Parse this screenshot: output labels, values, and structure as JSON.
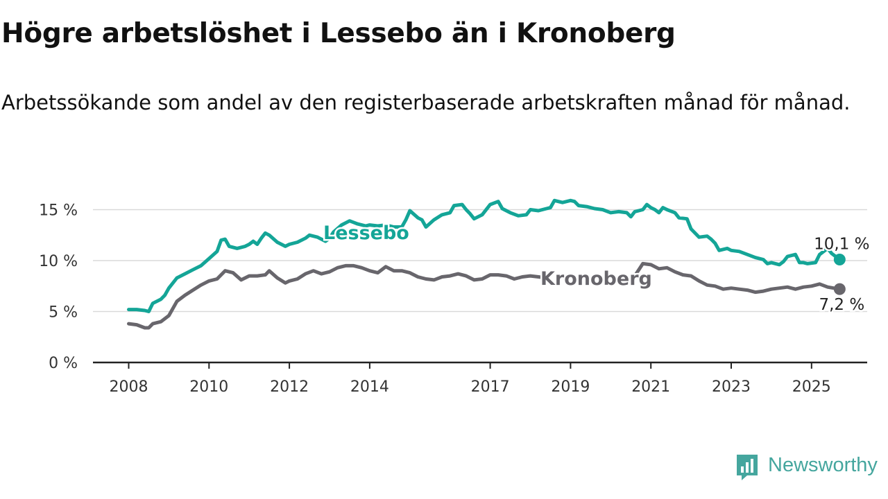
{
  "header": {
    "title": "Högre arbetslöshet i Lessebo än i Kronoberg",
    "subtitle": "Arbetssökande som andel av den registerbaserade arbetskraften månad för månad."
  },
  "brand": {
    "name": "Newsworthy",
    "icon": "newsworthy-logo-icon",
    "color": "#45a69e"
  },
  "chart_data": {
    "type": "line",
    "title": "Högre arbetslöshet i Lessebo än i Kronoberg",
    "subtitle": "Arbetssökande som andel av den registerbaserade arbetskraften månad för månad.",
    "xlim": [
      2008.0,
      2025.9
    ],
    "ylim": [
      0,
      16.5
    ],
    "x_ticks": [
      {
        "value": 2008,
        "label": "2008"
      },
      {
        "value": 2010,
        "label": "2010"
      },
      {
        "value": 2012,
        "label": "2012"
      },
      {
        "value": 2014,
        "label": "2014"
      },
      {
        "value": 2017,
        "label": "2017"
      },
      {
        "value": 2019,
        "label": "2019"
      },
      {
        "value": 2021,
        "label": "2021"
      },
      {
        "value": 2023,
        "label": "2023"
      },
      {
        "value": 2025,
        "label": "2025"
      }
    ],
    "y_ticks": [
      {
        "value": 0,
        "label": "0 %"
      },
      {
        "value": 5,
        "label": "5 %"
      },
      {
        "value": 10,
        "label": "10 %"
      },
      {
        "value": 15,
        "label": "15 %"
      }
    ],
    "grid": true,
    "legend": "inline labels",
    "series": [
      {
        "name": "Lessebo",
        "color": "#14a597",
        "end_label": "10,1 %",
        "points": [
          [
            2008.0,
            5.2
          ],
          [
            2008.2,
            5.2
          ],
          [
            2008.4,
            5.1
          ],
          [
            2008.5,
            5.0
          ],
          [
            2008.6,
            5.8
          ],
          [
            2008.8,
            6.2
          ],
          [
            2008.9,
            6.6
          ],
          [
            2009.0,
            7.3
          ],
          [
            2009.2,
            8.3
          ],
          [
            2009.4,
            8.7
          ],
          [
            2009.6,
            9.1
          ],
          [
            2009.8,
            9.5
          ],
          [
            2010.0,
            10.2
          ],
          [
            2010.2,
            10.9
          ],
          [
            2010.3,
            12.0
          ],
          [
            2010.4,
            12.1
          ],
          [
            2010.5,
            11.4
          ],
          [
            2010.7,
            11.2
          ],
          [
            2010.9,
            11.4
          ],
          [
            2011.0,
            11.6
          ],
          [
            2011.1,
            11.9
          ],
          [
            2011.2,
            11.6
          ],
          [
            2011.3,
            12.2
          ],
          [
            2011.4,
            12.7
          ],
          [
            2011.5,
            12.5
          ],
          [
            2011.7,
            11.8
          ],
          [
            2011.9,
            11.4
          ],
          [
            2012.0,
            11.6
          ],
          [
            2012.2,
            11.8
          ],
          [
            2012.4,
            12.2
          ],
          [
            2012.5,
            12.5
          ],
          [
            2012.7,
            12.3
          ],
          [
            2012.9,
            11.9
          ],
          [
            2013.0,
            12.2
          ],
          [
            2013.1,
            12.8
          ],
          [
            2013.3,
            13.5
          ],
          [
            2013.5,
            13.9
          ],
          [
            2013.7,
            13.6
          ],
          [
            2013.9,
            13.4
          ],
          [
            2014.0,
            13.5
          ],
          [
            2014.2,
            13.4
          ],
          [
            2014.4,
            13.5
          ],
          [
            2014.6,
            13.3
          ],
          [
            2014.8,
            13.3
          ],
          [
            2014.9,
            14.0
          ],
          [
            2015.0,
            14.9
          ],
          [
            2015.2,
            14.2
          ],
          [
            2015.3,
            14.0
          ],
          [
            2015.4,
            13.3
          ],
          [
            2015.6,
            14.0
          ],
          [
            2015.8,
            14.5
          ],
          [
            2016.0,
            14.7
          ],
          [
            2016.1,
            15.4
          ],
          [
            2016.3,
            15.5
          ],
          [
            2016.4,
            15.0
          ],
          [
            2016.5,
            14.6
          ],
          [
            2016.6,
            14.1
          ],
          [
            2016.8,
            14.5
          ],
          [
            2017.0,
            15.5
          ],
          [
            2017.2,
            15.8
          ],
          [
            2017.3,
            15.1
          ],
          [
            2017.5,
            14.7
          ],
          [
            2017.7,
            14.4
          ],
          [
            2017.9,
            14.5
          ],
          [
            2018.0,
            15.0
          ],
          [
            2018.2,
            14.9
          ],
          [
            2018.4,
            15.1
          ],
          [
            2018.5,
            15.2
          ],
          [
            2018.6,
            15.9
          ],
          [
            2018.8,
            15.7
          ],
          [
            2019.0,
            15.9
          ],
          [
            2019.1,
            15.8
          ],
          [
            2019.2,
            15.4
          ],
          [
            2019.4,
            15.3
          ],
          [
            2019.6,
            15.1
          ],
          [
            2019.8,
            15.0
          ],
          [
            2020.0,
            14.7
          ],
          [
            2020.2,
            14.8
          ],
          [
            2020.4,
            14.7
          ],
          [
            2020.5,
            14.3
          ],
          [
            2020.6,
            14.8
          ],
          [
            2020.8,
            15.0
          ],
          [
            2020.9,
            15.5
          ],
          [
            2021.0,
            15.2
          ],
          [
            2021.1,
            15.0
          ],
          [
            2021.2,
            14.7
          ],
          [
            2021.3,
            15.2
          ],
          [
            2021.4,
            15.0
          ],
          [
            2021.6,
            14.7
          ],
          [
            2021.7,
            14.2
          ],
          [
            2021.9,
            14.1
          ],
          [
            2022.0,
            13.1
          ],
          [
            2022.2,
            12.3
          ],
          [
            2022.4,
            12.4
          ],
          [
            2022.5,
            12.1
          ],
          [
            2022.6,
            11.7
          ],
          [
            2022.7,
            11.0
          ],
          [
            2022.9,
            11.2
          ],
          [
            2023.0,
            11.0
          ],
          [
            2023.2,
            10.9
          ],
          [
            2023.4,
            10.6
          ],
          [
            2023.6,
            10.3
          ],
          [
            2023.8,
            10.1
          ],
          [
            2023.9,
            9.7
          ],
          [
            2024.0,
            9.8
          ],
          [
            2024.2,
            9.6
          ],
          [
            2024.3,
            9.9
          ],
          [
            2024.4,
            10.4
          ],
          [
            2024.6,
            10.6
          ],
          [
            2024.7,
            9.8
          ],
          [
            2024.8,
            9.8
          ],
          [
            2024.9,
            9.7
          ],
          [
            2025.1,
            9.8
          ],
          [
            2025.2,
            10.6
          ],
          [
            2025.4,
            11.2
          ],
          [
            2025.5,
            10.7
          ],
          [
            2025.7,
            10.1
          ]
        ]
      },
      {
        "name": "Kronoberg",
        "color": "#68666c",
        "end_label": "7,2 %",
        "points": [
          [
            2008.0,
            3.8
          ],
          [
            2008.2,
            3.7
          ],
          [
            2008.4,
            3.4
          ],
          [
            2008.5,
            3.4
          ],
          [
            2008.6,
            3.8
          ],
          [
            2008.8,
            4.0
          ],
          [
            2009.0,
            4.6
          ],
          [
            2009.2,
            6.0
          ],
          [
            2009.4,
            6.6
          ],
          [
            2009.6,
            7.1
          ],
          [
            2009.8,
            7.6
          ],
          [
            2010.0,
            8.0
          ],
          [
            2010.2,
            8.2
          ],
          [
            2010.4,
            9.0
          ],
          [
            2010.6,
            8.8
          ],
          [
            2010.8,
            8.1
          ],
          [
            2011.0,
            8.5
          ],
          [
            2011.2,
            8.5
          ],
          [
            2011.4,
            8.6
          ],
          [
            2011.5,
            9.0
          ],
          [
            2011.7,
            8.3
          ],
          [
            2011.9,
            7.8
          ],
          [
            2012.0,
            8.0
          ],
          [
            2012.2,
            8.2
          ],
          [
            2012.4,
            8.7
          ],
          [
            2012.6,
            9.0
          ],
          [
            2012.8,
            8.7
          ],
          [
            2013.0,
            8.9
          ],
          [
            2013.2,
            9.3
          ],
          [
            2013.4,
            9.5
          ],
          [
            2013.6,
            9.5
          ],
          [
            2013.8,
            9.3
          ],
          [
            2014.0,
            9.0
          ],
          [
            2014.2,
            8.8
          ],
          [
            2014.4,
            9.4
          ],
          [
            2014.6,
            9.0
          ],
          [
            2014.8,
            9.0
          ],
          [
            2015.0,
            8.8
          ],
          [
            2015.2,
            8.4
          ],
          [
            2015.4,
            8.2
          ],
          [
            2015.6,
            8.1
          ],
          [
            2015.8,
            8.4
          ],
          [
            2016.0,
            8.5
          ],
          [
            2016.2,
            8.7
          ],
          [
            2016.4,
            8.5
          ],
          [
            2016.6,
            8.1
          ],
          [
            2016.8,
            8.2
          ],
          [
            2017.0,
            8.6
          ],
          [
            2017.2,
            8.6
          ],
          [
            2017.4,
            8.5
          ],
          [
            2017.6,
            8.2
          ],
          [
            2017.8,
            8.4
          ],
          [
            2018.0,
            8.5
          ],
          [
            2018.2,
            8.4
          ],
          [
            2018.4,
            8.3
          ],
          [
            2020.6,
            8.5
          ],
          [
            2020.8,
            9.7
          ],
          [
            2021.0,
            9.6
          ],
          [
            2021.2,
            9.2
          ],
          [
            2021.4,
            9.3
          ],
          [
            2021.6,
            8.9
          ],
          [
            2021.8,
            8.6
          ],
          [
            2022.0,
            8.5
          ],
          [
            2022.2,
            8.0
          ],
          [
            2022.4,
            7.6
          ],
          [
            2022.6,
            7.5
          ],
          [
            2022.8,
            7.2
          ],
          [
            2023.0,
            7.3
          ],
          [
            2023.2,
            7.2
          ],
          [
            2023.4,
            7.1
          ],
          [
            2023.6,
            6.9
          ],
          [
            2023.8,
            7.0
          ],
          [
            2024.0,
            7.2
          ],
          [
            2024.2,
            7.3
          ],
          [
            2024.4,
            7.4
          ],
          [
            2024.6,
            7.2
          ],
          [
            2024.8,
            7.4
          ],
          [
            2025.0,
            7.5
          ],
          [
            2025.2,
            7.7
          ],
          [
            2025.4,
            7.4
          ],
          [
            2025.7,
            7.2
          ]
        ]
      }
    ]
  }
}
